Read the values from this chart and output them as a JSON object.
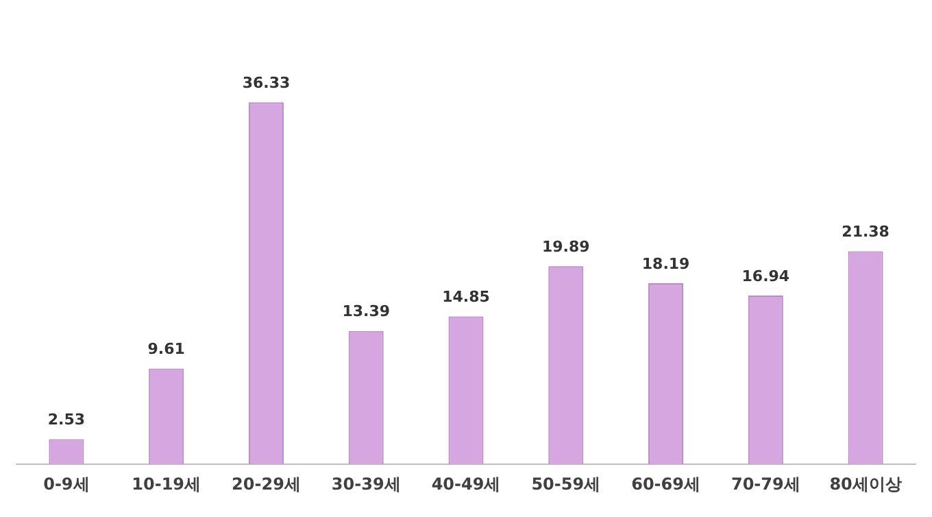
{
  "chart_data": {
    "type": "bar",
    "categories": [
      "0-9세",
      "10-19세",
      "20-29세",
      "30-39세",
      "40-49세",
      "50-59세",
      "60-69세",
      "70-79세",
      "80세이상"
    ],
    "values": [
      2.53,
      9.61,
      36.33,
      13.39,
      14.85,
      19.89,
      18.19,
      16.94,
      21.38
    ],
    "color": "#d5a6df",
    "data_labels": true,
    "grid": false,
    "legend": false
  }
}
